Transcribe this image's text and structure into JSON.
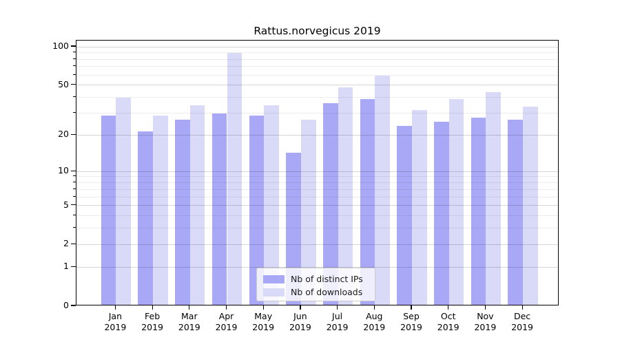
{
  "chart_data": {
    "type": "bar",
    "title": "Rattus.norvegicus 2019",
    "x_categories": [
      "Jan",
      "Feb",
      "Mar",
      "Apr",
      "May",
      "Jun",
      "Jul",
      "Aug",
      "Sep",
      "Oct",
      "Nov",
      "Dec"
    ],
    "x_year": "2019",
    "series": [
      {
        "name": "Nb of distinct IPs",
        "color": "#a8a8f6",
        "values": [
          28,
          21,
          26,
          29,
          28,
          14,
          35,
          38,
          23,
          25,
          27,
          26
        ]
      },
      {
        "name": "Nb of downloads",
        "color": "#d9d9f8",
        "values": [
          39,
          28,
          34,
          87,
          34,
          26,
          47,
          58,
          31,
          38,
          43,
          33
        ]
      }
    ],
    "xlabel": "",
    "ylabel": "",
    "y_scale": "log1p",
    "y_ticks": [
      0,
      1,
      2,
      5,
      10,
      20,
      50,
      100
    ],
    "y_minor_ticks": [
      3,
      4,
      6,
      7,
      8,
      9,
      30,
      40,
      60,
      70,
      80,
      90
    ],
    "ylim": [
      0,
      112
    ],
    "grid": true,
    "grid_above_bars": true,
    "legend_position": "lower center"
  }
}
